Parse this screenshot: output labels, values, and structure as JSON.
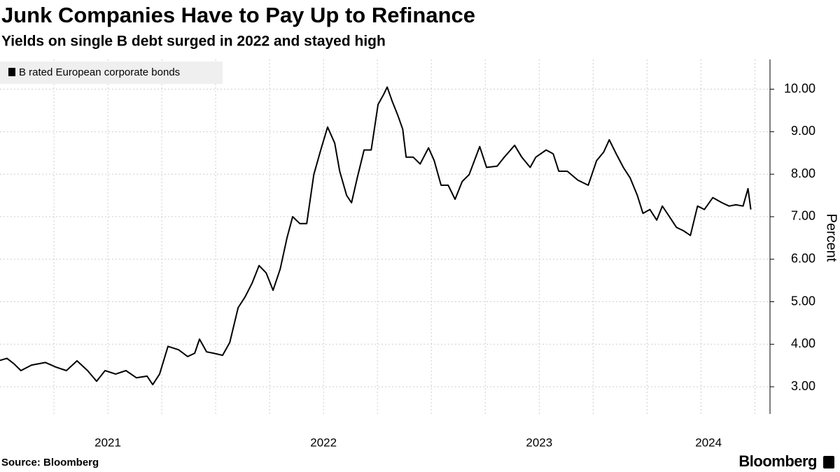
{
  "chart_data": {
    "type": "line",
    "title": "Junk Companies Have to Pay Up to Refinance",
    "subtitle": "Yields on single B debt surged in 2022 and stayed high",
    "y_label": "Percent",
    "source": "Source: Bloomberg",
    "brand": "Bloomberg",
    "x": [
      2021.0,
      2021.032,
      2021.065,
      2021.097,
      2021.146,
      2021.211,
      2021.26,
      2021.308,
      2021.357,
      2021.406,
      2021.448,
      2021.487,
      2021.536,
      2021.584,
      2021.633,
      2021.682,
      2021.708,
      2021.74,
      2021.779,
      2021.828,
      2021.87,
      2021.903,
      2021.925,
      2021.958,
      2021.99,
      2022.032,
      2022.065,
      2022.104,
      2022.136,
      2022.169,
      2022.201,
      2022.234,
      2022.266,
      2022.299,
      2022.331,
      2022.357,
      2022.39,
      2022.422,
      2022.455,
      2022.487,
      2022.519,
      2022.552,
      2022.575,
      2022.607,
      2022.63,
      2022.656,
      2022.688,
      2022.721,
      2022.753,
      2022.779,
      2022.795,
      2022.818,
      2022.844,
      2022.867,
      2022.883,
      2022.916,
      2022.948,
      2022.987,
      2023.013,
      2023.045,
      2023.078,
      2023.11,
      2023.143,
      2023.175,
      2023.224,
      2023.256,
      2023.305,
      2023.338,
      2023.386,
      2023.419,
      2023.458,
      2023.484,
      2023.532,
      2023.565,
      2023.591,
      2023.63,
      2023.679,
      2023.727,
      2023.766,
      2023.799,
      2023.825,
      2023.857,
      2023.89,
      2023.922,
      2023.955,
      2023.981,
      2024.013,
      2024.045,
      2024.071,
      2024.104,
      2024.136,
      2024.169,
      2024.201,
      2024.234,
      2024.266,
      2024.305,
      2024.347,
      2024.38,
      2024.412,
      2024.445,
      2024.468,
      2024.481
    ],
    "series": [
      {
        "name": "B rated European corporate bonds",
        "color": "#000000",
        "values": [
          3.62,
          3.67,
          3.54,
          3.38,
          3.51,
          3.57,
          3.46,
          3.38,
          3.61,
          3.38,
          3.13,
          3.38,
          3.3,
          3.38,
          3.21,
          3.25,
          3.05,
          3.3,
          3.95,
          3.87,
          3.71,
          3.79,
          4.12,
          3.82,
          3.79,
          3.74,
          4.04,
          4.86,
          5.11,
          5.44,
          5.85,
          5.68,
          5.27,
          5.77,
          6.51,
          7.0,
          6.84,
          6.84,
          7.99,
          8.57,
          9.11,
          8.73,
          8.07,
          7.5,
          7.33,
          7.91,
          8.57,
          8.57,
          9.64,
          9.88,
          10.05,
          9.72,
          9.39,
          9.06,
          8.4,
          8.4,
          8.24,
          8.62,
          8.32,
          7.74,
          7.74,
          7.41,
          7.83,
          7.99,
          8.65,
          8.16,
          8.19,
          8.4,
          8.68,
          8.4,
          8.16,
          8.4,
          8.57,
          8.48,
          8.07,
          8.07,
          7.86,
          7.74,
          8.32,
          8.52,
          8.81,
          8.48,
          8.16,
          7.91,
          7.5,
          7.08,
          7.17,
          6.92,
          7.25,
          7.0,
          6.75,
          6.67,
          6.56,
          7.25,
          7.17,
          7.45,
          7.33,
          7.25,
          7.28,
          7.25,
          7.66,
          7.17
        ]
      }
    ],
    "xlim": [
      2021,
      2024.57
    ],
    "xticks": [
      2021,
      2022,
      2023,
      2024
    ],
    "ylim": [
      2.36,
      10.7
    ],
    "yticks": [
      {
        "value": 3,
        "label": "3.00"
      },
      {
        "value": 4,
        "label": "4.00"
      },
      {
        "value": 5,
        "label": "5.00"
      },
      {
        "value": 6,
        "label": "6.00"
      },
      {
        "value": 7,
        "label": "7.00"
      },
      {
        "value": 8,
        "label": "8.00"
      },
      {
        "value": 9,
        "label": "9.00"
      },
      {
        "value": 10,
        "label": "10.00"
      }
    ],
    "grid": true,
    "y_axis_side": "right",
    "legend": "top-left"
  }
}
